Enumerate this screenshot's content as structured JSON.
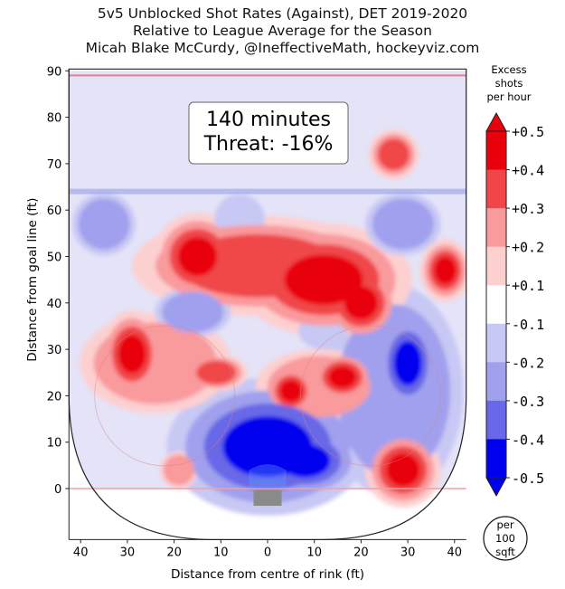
{
  "chart_data": {
    "type": "heatmap",
    "title_lines": [
      "5v5 Unblocked Shot Rates (Against), DET 2019-2020",
      "Relative to League Average for the Season",
      "Micah Blake McCurdy, @IneffectiveMath, hockeyviz.com"
    ],
    "xlabel": "Distance from centre of rink (ft)",
    "ylabel": "Distance from goal line (ft)",
    "x_ticks": [
      40,
      30,
      20,
      10,
      0,
      10,
      20,
      30,
      40
    ],
    "y_ticks": [
      0,
      10,
      20,
      30,
      40,
      50,
      60,
      70,
      80,
      90
    ],
    "xlim": [
      -42.5,
      42.5
    ],
    "ylim": [
      -11,
      90
    ],
    "annotation": {
      "line1": "140 minutes",
      "line2": "Threat: -16%"
    },
    "colorbar": {
      "title": [
        "Excess",
        "shots",
        "per hour"
      ],
      "ticks": [
        "+0.5",
        "+0.4",
        "+0.3",
        "+0.2",
        "+0.1",
        "-0.1",
        "-0.2",
        "-0.3",
        "-0.4",
        "-0.5"
      ],
      "values": [
        0.5,
        0.4,
        0.3,
        0.2,
        0.1,
        -0.1,
        -0.2,
        -0.3,
        -0.4,
        -0.5
      ],
      "unit": [
        "per",
        "100",
        "sqft"
      ]
    },
    "colors": {
      "red_strong": "#e8000b",
      "red_mid": "#f0464a",
      "red_light": "#f99a9c",
      "red_pale": "#fdd0d0",
      "blue_pale": "#c8c8f4",
      "blue_light": "#a0a0ee",
      "blue_mid": "#6868e8",
      "blue_strong": "#0000ee"
    },
    "blobs": [
      {
        "x": 0,
        "y": 9,
        "rx": 16,
        "ry": 11,
        "value": -0.5
      },
      {
        "x": 8,
        "y": 6,
        "rx": 9,
        "ry": 6,
        "value": -0.5
      },
      {
        "x": 30,
        "y": 27,
        "rx": 5,
        "ry": 8,
        "value": -0.45
      },
      {
        "x": 27,
        "y": 21,
        "rx": 11,
        "ry": 17,
        "value": -0.25
      },
      {
        "x": -16,
        "y": 38,
        "rx": 6,
        "ry": 4,
        "value": -0.3
      },
      {
        "x": 29,
        "y": 57,
        "rx": 6,
        "ry": 5,
        "value": -0.3
      },
      {
        "x": -35,
        "y": 57,
        "rx": 5,
        "ry": 5,
        "value": -0.25
      },
      {
        "x": -6,
        "y": 58,
        "rx": 4,
        "ry": 4,
        "value": -0.2
      },
      {
        "x": 12,
        "y": 34,
        "rx": 4,
        "ry": 3,
        "value": -0.2
      },
      {
        "x": -2,
        "y": 48,
        "rx": 20,
        "ry": 8,
        "value": 0.42
      },
      {
        "x": 12,
        "y": 45,
        "rx": 14,
        "ry": 9,
        "value": 0.45
      },
      {
        "x": -15,
        "y": 50,
        "rx": 7,
        "ry": 7,
        "value": 0.45
      },
      {
        "x": -29,
        "y": 29,
        "rx": 5,
        "ry": 7,
        "value": 0.45
      },
      {
        "x": -24,
        "y": 27,
        "rx": 12,
        "ry": 8,
        "value": 0.3
      },
      {
        "x": -11,
        "y": 25,
        "rx": 5,
        "ry": 3,
        "value": 0.4
      },
      {
        "x": 16,
        "y": 24,
        "rx": 5,
        "ry": 4,
        "value": 0.45
      },
      {
        "x": 5,
        "y": 21,
        "rx": 4,
        "ry": 4,
        "value": 0.45
      },
      {
        "x": 11,
        "y": 22,
        "rx": 10,
        "ry": 6,
        "value": 0.3
      },
      {
        "x": 20,
        "y": 40,
        "rx": 6,
        "ry": 6,
        "value": 0.45
      },
      {
        "x": 38,
        "y": 47,
        "rx": 4,
        "ry": 5,
        "value": 0.45
      },
      {
        "x": 27,
        "y": 72,
        "rx": 4,
        "ry": 4,
        "value": 0.35
      },
      {
        "x": 29,
        "y": 4,
        "rx": 6,
        "ry": 6,
        "value": 0.5
      },
      {
        "x": -19,
        "y": 4,
        "rx": 3,
        "ry": 3,
        "value": 0.3
      }
    ]
  }
}
